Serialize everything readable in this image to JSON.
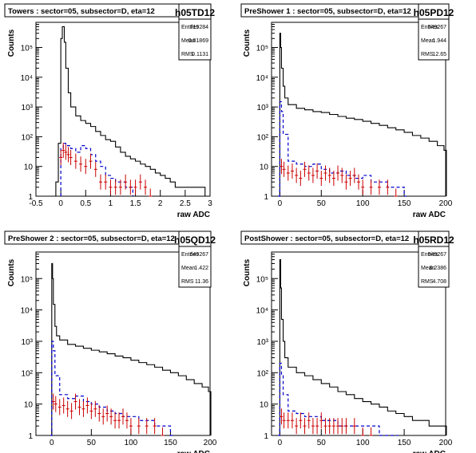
{
  "chart_data": [
    {
      "type": "histogram",
      "id": "towers",
      "title": "Towers : sector=05, subsector=D, eta=12",
      "name": "h05TD12",
      "stats": [
        {
          "label": "Entries",
          "value": "719284"
        },
        {
          "label": "Mean",
          "value": "0.01869"
        },
        {
          "label": "RMS",
          "value": "0.1131"
        }
      ],
      "xlabel": "raw ADC",
      "ylabel": "Counts",
      "xlim": [
        -0.5,
        3
      ],
      "xticks": [
        -0.5,
        0,
        0.5,
        1,
        1.5,
        2,
        2.5,
        3
      ],
      "xticklabels": [
        "-0.5",
        "0",
        "0.5",
        "1",
        "1.5",
        "2",
        "2.5",
        "3"
      ],
      "yscale": "log",
      "ylim": [
        1,
        700000
      ],
      "yticks": [
        1,
        10,
        100,
        1000,
        10000,
        100000
      ],
      "yticklabels": [
        "1",
        "10",
        "10²",
        "10³",
        "10⁴",
        "10⁵"
      ],
      "colors": {
        "main": "#000000",
        "dashed": "#0000cc",
        "errors": "#cc0000"
      },
      "series": [
        {
          "style": "solid",
          "x": [
            -0.2,
            -0.1,
            -0.05,
            0.0,
            0.03,
            0.07,
            0.1,
            0.15,
            0.2,
            0.3,
            0.4,
            0.5,
            0.6,
            0.7,
            0.8,
            0.9,
            1.0,
            1.1,
            1.2,
            1.3,
            1.4,
            1.5,
            1.6,
            1.7,
            1.8,
            1.9,
            2.0,
            2.1,
            2.2,
            2.3,
            2.5,
            2.7,
            2.9
          ],
          "y": [
            1,
            3,
            60,
            200000,
            500000,
            150000,
            20000,
            3000,
            1000,
            500,
            350,
            280,
            220,
            150,
            110,
            80,
            70,
            45,
            30,
            22,
            18,
            15,
            12,
            10,
            8,
            6,
            5,
            4,
            3,
            2,
            2,
            2,
            1
          ]
        },
        {
          "style": "dashed",
          "x": [
            0.0,
            0.05,
            0.1,
            0.2,
            0.3,
            0.4,
            0.5,
            0.6,
            0.7,
            0.8,
            0.9,
            1.0,
            1.1,
            1.2,
            1.3,
            1.4
          ],
          "y": [
            40,
            60,
            50,
            40,
            30,
            50,
            40,
            25,
            15,
            10,
            5,
            4,
            3,
            3,
            2,
            2
          ]
        },
        {
          "style": "errors",
          "x": [
            0.0,
            0.05,
            0.1,
            0.15,
            0.2,
            0.3,
            0.4,
            0.5,
            0.6,
            0.7,
            0.8,
            0.9,
            1.0,
            1.1,
            1.2,
            1.3,
            1.4,
            1.5,
            1.6,
            1.7,
            1.8
          ],
          "y": [
            20,
            35,
            30,
            25,
            20,
            15,
            12,
            10,
            15,
            8,
            3,
            3,
            2,
            2,
            2,
            3,
            2,
            2,
            3,
            2,
            1
          ]
        }
      ]
    },
    {
      "type": "histogram",
      "id": "preshower1",
      "title": "PreShower 1 : sector=05, subsector=D, eta=12",
      "name": "h05PD12",
      "stats": [
        {
          "label": "Entries",
          "value": "649267"
        },
        {
          "label": "Mean",
          "value": "1.944"
        },
        {
          "label": "RMS",
          "value": "12.65"
        }
      ],
      "xlabel": "raw ADC",
      "ylabel": "Counts",
      "xlim": [
        -10,
        200
      ],
      "xticks": [
        0,
        50,
        100,
        150,
        200
      ],
      "xticklabels": [
        "0",
        "50",
        "100",
        "150",
        "200"
      ],
      "yscale": "log",
      "ylim": [
        1,
        700000
      ],
      "yticks": [
        1,
        10,
        100,
        1000,
        10000,
        100000
      ],
      "yticklabels": [
        "1",
        "10",
        "10²",
        "10³",
        "10⁴",
        "10⁵"
      ],
      "colors": {
        "main": "#000000",
        "dashed": "#0000cc",
        "errors": "#cc0000"
      },
      "series": [
        {
          "style": "solid",
          "x": [
            -3,
            0,
            1,
            2,
            4,
            6,
            10,
            20,
            30,
            40,
            50,
            60,
            70,
            80,
            90,
            100,
            110,
            120,
            130,
            140,
            150,
            160,
            170,
            180,
            190,
            198
          ],
          "y": [
            1,
            300000,
            100000,
            20000,
            5000,
            2000,
            1200,
            900,
            800,
            700,
            650,
            560,
            480,
            420,
            380,
            330,
            280,
            240,
            200,
            170,
            140,
            110,
            90,
            70,
            50,
            35
          ]
        },
        {
          "style": "dashed",
          "x": [
            -2,
            0,
            2,
            4,
            10,
            20,
            30,
            40,
            50,
            60,
            70,
            80,
            90,
            100,
            110,
            120,
            130,
            140,
            150
          ],
          "y": [
            1,
            1500,
            700,
            120,
            15,
            12,
            10,
            12,
            8,
            6,
            7,
            5,
            4,
            5,
            3,
            3,
            2,
            2,
            1
          ]
        },
        {
          "style": "errors",
          "x": [
            2,
            5,
            10,
            15,
            20,
            25,
            30,
            35,
            40,
            45,
            50,
            55,
            60,
            65,
            70,
            75,
            80,
            85,
            90,
            95,
            100,
            110,
            120,
            130,
            140
          ],
          "y": [
            10,
            8,
            6,
            7,
            5,
            4,
            8,
            6,
            5,
            7,
            4,
            6,
            5,
            4,
            6,
            5,
            3,
            4,
            5,
            3,
            2,
            2,
            2,
            2,
            1
          ]
        }
      ]
    },
    {
      "type": "histogram",
      "id": "preshower2",
      "title": "PreShower 2 : sector=05, subsector=D, eta=12",
      "name": "h05QD12",
      "stats": [
        {
          "label": "Entries",
          "value": "649267"
        },
        {
          "label": "Mean",
          "value": "1.422"
        },
        {
          "label": "RMS",
          "value": "11.36"
        }
      ],
      "xlabel": "raw ADC",
      "ylabel": "Counts",
      "xlim": [
        -20,
        200
      ],
      "xticks": [
        0,
        50,
        100,
        150,
        200
      ],
      "xticklabels": [
        "0",
        "50",
        "100",
        "150",
        "200"
      ],
      "yscale": "log",
      "ylim": [
        1,
        700000
      ],
      "yticks": [
        1,
        10,
        100,
        1000,
        10000,
        100000
      ],
      "yticklabels": [
        "1",
        "10",
        "10²",
        "10³",
        "10⁴",
        "10⁵"
      ],
      "colors": {
        "main": "#000000",
        "dashed": "#0000cc",
        "errors": "#cc0000"
      },
      "series": [
        {
          "style": "solid",
          "x": [
            -3,
            0,
            1,
            2,
            4,
            6,
            10,
            20,
            30,
            40,
            50,
            60,
            70,
            80,
            90,
            100,
            110,
            120,
            130,
            140,
            150,
            160,
            170,
            180,
            190,
            198
          ],
          "y": [
            1,
            300000,
            100000,
            15000,
            3000,
            1500,
            1100,
            800,
            700,
            600,
            520,
            460,
            400,
            340,
            300,
            250,
            210,
            180,
            150,
            120,
            100,
            80,
            60,
            45,
            35,
            25
          ]
        },
        {
          "style": "dashed",
          "x": [
            -2,
            0,
            2,
            4,
            10,
            20,
            30,
            40,
            50,
            60,
            70,
            80,
            90,
            100,
            110,
            120,
            130,
            140,
            150
          ],
          "y": [
            1,
            1000,
            500,
            80,
            20,
            15,
            18,
            12,
            10,
            8,
            6,
            5,
            4,
            4,
            3,
            3,
            2,
            2,
            1
          ]
        },
        {
          "style": "errors",
          "x": [
            2,
            5,
            10,
            15,
            20,
            25,
            30,
            35,
            40,
            45,
            50,
            55,
            60,
            65,
            70,
            75,
            80,
            85,
            90,
            95,
            100,
            110,
            120,
            130,
            140
          ],
          "y": [
            12,
            10,
            8,
            9,
            7,
            6,
            12,
            8,
            7,
            9,
            6,
            7,
            5,
            4,
            5,
            4,
            3,
            3,
            4,
            3,
            2,
            2,
            2,
            2,
            1
          ]
        }
      ]
    },
    {
      "type": "histogram",
      "id": "postshower",
      "title": "PostShower : sector=05, subsector=D, eta=12",
      "name": "h05RD12",
      "stats": [
        {
          "label": "Entries",
          "value": "649267"
        },
        {
          "label": "Mean",
          "value": "0.2386"
        },
        {
          "label": "RMS",
          "value": "4.708"
        }
      ],
      "xlabel": "raw ADC",
      "ylabel": "Counts",
      "xlim": [
        -10,
        200
      ],
      "xticks": [
        0,
        50,
        100,
        150,
        200
      ],
      "xticklabels": [
        "0",
        "50",
        "100",
        "150",
        "200"
      ],
      "yscale": "log",
      "ylim": [
        1,
        700000
      ],
      "yticks": [
        1,
        10,
        100,
        1000,
        10000,
        100000
      ],
      "yticklabels": [
        "1",
        "10",
        "10²",
        "10³",
        "10⁴",
        "10⁵"
      ],
      "colors": {
        "main": "#000000",
        "dashed": "#0000cc",
        "errors": "#cc0000"
      },
      "series": [
        {
          "style": "solid",
          "x": [
            -3,
            0,
            1,
            2,
            4,
            6,
            10,
            20,
            30,
            40,
            50,
            60,
            70,
            80,
            90,
            100,
            110,
            120,
            130,
            140,
            150,
            160,
            170,
            180,
            190,
            198
          ],
          "y": [
            1,
            400000,
            50000,
            5000,
            1000,
            300,
            150,
            100,
            80,
            60,
            45,
            35,
            25,
            20,
            15,
            12,
            10,
            8,
            6,
            5,
            4,
            3,
            3,
            2,
            2,
            2
          ]
        },
        {
          "style": "dashed",
          "x": [
            -2,
            0,
            2,
            4,
            10,
            20,
            30,
            40,
            50,
            60,
            70,
            80,
            90,
            100,
            110,
            120,
            130,
            140
          ],
          "y": [
            1,
            200,
            80,
            20,
            6,
            5,
            4,
            4,
            3,
            3,
            2,
            2,
            2,
            2,
            2,
            1,
            1,
            1
          ]
        },
        {
          "style": "errors",
          "x": [
            2,
            5,
            10,
            15,
            20,
            25,
            30,
            35,
            40,
            45,
            50,
            55,
            60,
            65,
            70,
            75,
            80,
            90,
            100,
            110
          ],
          "y": [
            4,
            3,
            3,
            3,
            2,
            3,
            2,
            3,
            2,
            2,
            3,
            2,
            2,
            2,
            2,
            2,
            2,
            2,
            1,
            1
          ]
        }
      ]
    }
  ]
}
